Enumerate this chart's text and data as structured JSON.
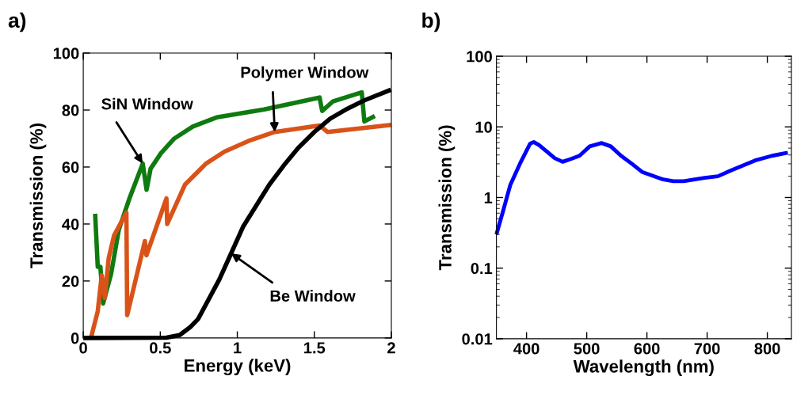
{
  "chart_data": [
    {
      "type": "line",
      "title": "a)",
      "xlabel": "Energy (keV)",
      "ylabel": "Transmission (%)",
      "xlim": [
        0,
        2
      ],
      "ylim": [
        0,
        100
      ],
      "xticks": [
        0,
        0.5,
        1,
        1.5,
        2
      ],
      "yticks": [
        0,
        20,
        40,
        60,
        80,
        100
      ],
      "grid": false,
      "legend": false,
      "series": [
        {
          "color": "#0f7a0f",
          "x": [
            0.077,
            0.094,
            0.111,
            0.129,
            0.18,
            0.231,
            0.3,
            0.386,
            0.411,
            0.437,
            0.505,
            0.591,
            0.711,
            0.865,
            1.174,
            1.534,
            1.551,
            1.62,
            1.808,
            1.825,
            1.893
          ],
          "values": [
            43.6,
            25,
            25,
            12.1,
            22.3,
            38,
            49,
            61.2,
            52,
            59.4,
            64.9,
            70,
            74.2,
            77.4,
            80.2,
            84.4,
            79.7,
            83,
            86.2,
            76,
            77.9
          ]
        },
        {
          "color": "#d95319",
          "x": [
            0.05,
            0.094,
            0.12,
            0.14,
            0.165,
            0.2,
            0.28,
            0.285,
            0.4,
            0.41,
            0.54,
            0.545,
            0.66,
            0.797,
            0.917,
            1.071,
            1.243,
            1.534,
            1.585,
            2.0
          ],
          "values": [
            0,
            9.4,
            22,
            14,
            28,
            36,
            44,
            8,
            34,
            29,
            49,
            40,
            53.8,
            61.2,
            65.4,
            69.1,
            72.3,
            74.6,
            72.3,
            74.8
          ]
        },
        {
          "color": "#000000",
          "x": [
            0,
            0.54,
            0.626,
            0.694,
            0.745,
            0.883,
            0.96,
            1.037,
            1.122,
            1.208,
            1.311,
            1.397,
            1.5,
            1.603,
            1.705,
            1.825,
            1.997
          ],
          "values": [
            0,
            0.1,
            1,
            3.8,
            6.6,
            20.5,
            29.7,
            39,
            46.4,
            53.8,
            61.2,
            66.8,
            72.3,
            77,
            80.2,
            83.4,
            87.1
          ]
        }
      ],
      "annotations": [
        {
          "text": "Polymer Window",
          "x": 1.243,
          "y": 72.3
        },
        {
          "text": "SiN Window",
          "x": 0.386,
          "y": 61.2
        },
        {
          "text": "Be Window",
          "x": 0.96,
          "y": 29.7
        }
      ]
    },
    {
      "type": "line",
      "title": "b)",
      "xlabel": "Wavelength (nm)",
      "ylabel": "Transmission (%)",
      "log": "y",
      "xlim": [
        350,
        840
      ],
      "ylim": [
        0.01,
        100
      ],
      "xticks": [
        400,
        500,
        600,
        700,
        800
      ],
      "yticks": [
        0.01,
        0.1,
        1,
        10,
        100
      ],
      "grid": false,
      "legend": false,
      "series": [
        {
          "color": "#0000ff",
          "x": [
            350,
            361,
            373,
            389,
            406,
            412,
            421,
            436,
            447,
            460,
            473,
            488,
            505,
            525,
            540,
            557,
            575,
            592,
            627,
            644,
            661,
            696,
            718,
            739,
            782,
            808,
            834
          ],
          "values": [
            0.3,
            0.64,
            1.5,
            3.0,
            5.8,
            6.1,
            5.5,
            4.3,
            3.6,
            3.2,
            3.5,
            3.9,
            5.3,
            5.9,
            5.3,
            3.9,
            3.0,
            2.3,
            1.8,
            1.7,
            1.7,
            1.9,
            2.0,
            2.4,
            3.4,
            3.9,
            4.3
          ]
        }
      ]
    }
  ]
}
